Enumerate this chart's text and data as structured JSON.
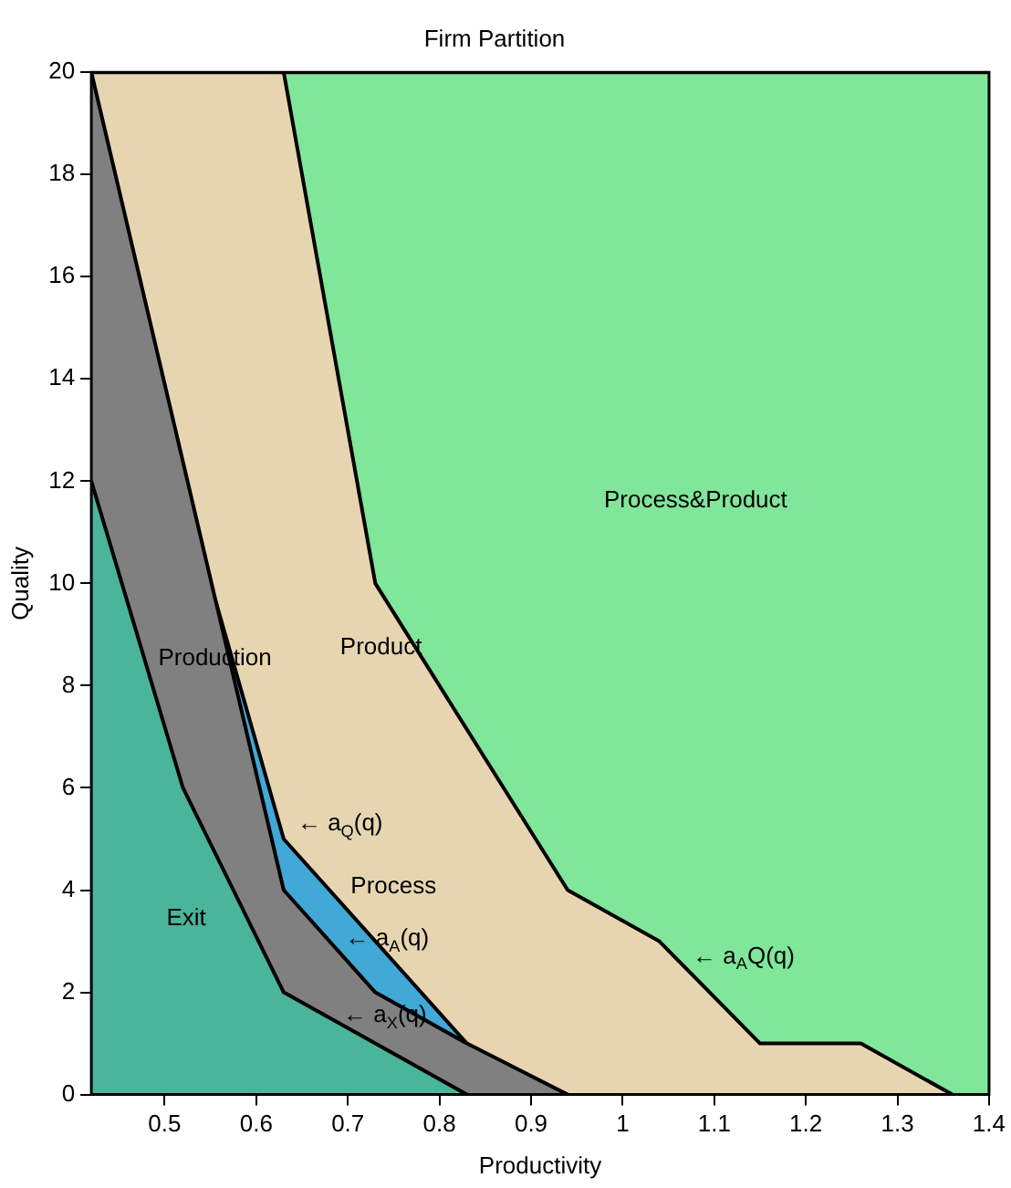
{
  "chart_data": {
    "type": "area",
    "title": "Firm Partition",
    "xlabel": "Productivity",
    "ylabel": "Quality",
    "xlim": [
      0.42,
      1.4
    ],
    "xticks": [
      0.5,
      0.6,
      0.7,
      0.8,
      0.9,
      1,
      1.1,
      1.2,
      1.3,
      1.4
    ],
    "ylim": [
      0,
      20
    ],
    "yticks": [
      0,
      2,
      4,
      6,
      8,
      10,
      12,
      14,
      16,
      18,
      20
    ],
    "legend": false,
    "marker": "none",
    "line_style": "solid",
    "series": [
      {
        "name": "Exit",
        "color": "#4ab59a",
        "x": [
          0.42,
          0.52,
          0.63,
          0.83
        ],
        "values": [
          12,
          6,
          2,
          0
        ]
      },
      {
        "name": "Production",
        "color": "#808080",
        "x": [
          0.42,
          0.63,
          0.73,
          0.83,
          0.94
        ],
        "values": [
          20,
          4,
          2,
          1,
          0
        ]
      },
      {
        "name": "Process",
        "color": "#42a8d6",
        "x": [
          0.555,
          0.63,
          0.83
        ],
        "values": [
          9.7,
          5,
          1
        ]
      },
      {
        "name": "Product",
        "color": "#e6d5b0",
        "x": [
          0.42,
          0.63,
          0.73,
          0.94,
          1.04,
          1.15,
          1.26,
          1.36
        ],
        "values": [
          20,
          20,
          10,
          4,
          3,
          1,
          1,
          0
        ]
      },
      {
        "name": "Process&Product",
        "color": "#80e69a",
        "x": [
          0.63,
          1.4
        ],
        "values": [
          20,
          20
        ]
      }
    ],
    "annotations": [
      {
        "text": "← a$_{Q}$(q)",
        "x": 0.625,
        "y": 5.3
      },
      {
        "text": "← a$_{A}$(q)",
        "x": 0.6775,
        "y": 3.05
      },
      {
        "text": "← a$_{X}$(q)",
        "x": 0.675,
        "y": 1.55
      },
      {
        "text": "← a$_{A}$Q(q)",
        "x": 1.0565,
        "y": 2.7
      }
    ]
  }
}
